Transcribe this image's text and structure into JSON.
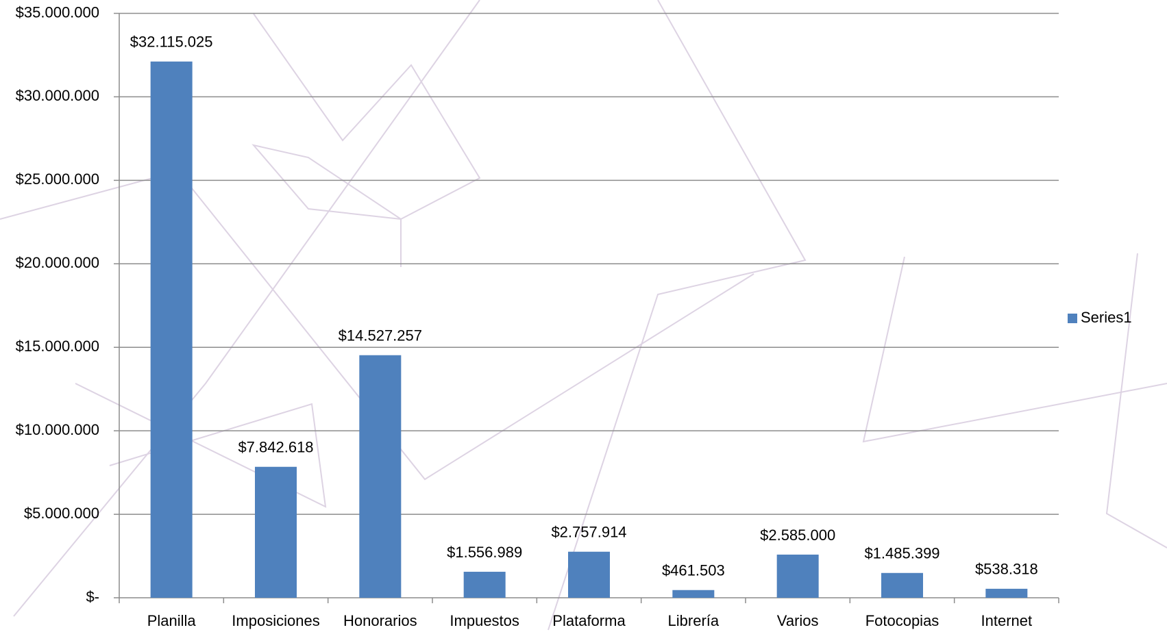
{
  "chart_data": {
    "type": "bar",
    "categories": [
      "Planilla",
      "Imposiciones",
      "Honorarios",
      "Impuestos",
      "Plataforma",
      "Librería",
      "Varios",
      "Fotocopias",
      "Internet"
    ],
    "series": [
      {
        "name": "Series1",
        "color": "#4f81bd",
        "values": [
          32115025,
          7842618,
          14527257,
          1556989,
          2757914,
          461503,
          2585000,
          1485399,
          538318
        ],
        "value_labels": [
          "$32.115.025",
          "$7.842.618",
          "$14.527.257",
          "$1.556.989",
          "$2.757.914",
          "$461.503",
          "$2.585.000",
          "$1.485.399",
          "$538.318"
        ]
      }
    ],
    "ylim": [
      0,
      35000000
    ],
    "yticks": [
      {
        "value": 0,
        "label": "$-"
      },
      {
        "value": 5000000,
        "label": "$5.000.000"
      },
      {
        "value": 10000000,
        "label": "$10.000.000"
      },
      {
        "value": 15000000,
        "label": "$15.000.000"
      },
      {
        "value": 20000000,
        "label": "$20.000.000"
      },
      {
        "value": 25000000,
        "label": "$25.000.000"
      },
      {
        "value": 30000000,
        "label": "$30.000.000"
      },
      {
        "value": 35000000,
        "label": "$35.000.000"
      }
    ],
    "grid": true,
    "legend": "right"
  }
}
